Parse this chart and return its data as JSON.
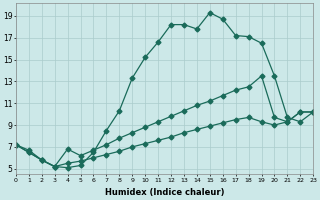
{
  "xlabel": "Humidex (Indice chaleur)",
  "background_color": "#cce8e8",
  "grid_color": "#aacccc",
  "line_color": "#1a6b5a",
  "line1_x": [
    0,
    1,
    2,
    3,
    4,
    5,
    6,
    7,
    8,
    9,
    10,
    11,
    12,
    13,
    14,
    15,
    16,
    17,
    18,
    19,
    20,
    21,
    22,
    23
  ],
  "line1_y": [
    7.2,
    6.7,
    5.8,
    5.2,
    5.1,
    5.3,
    6.5,
    8.5,
    10.3,
    13.3,
    15.2,
    16.6,
    18.2,
    18.2,
    17.8,
    19.3,
    18.7,
    17.2,
    17.1,
    16.5,
    13.5,
    9.7,
    9.3,
    10.2
  ],
  "line2_x": [
    0,
    1,
    2,
    3,
    4,
    5,
    6,
    7,
    8,
    9,
    10,
    11,
    12,
    13,
    14,
    15,
    16,
    17,
    18,
    19,
    20,
    21,
    22,
    23
  ],
  "line2_y": [
    7.2,
    6.5,
    5.8,
    5.2,
    6.8,
    6.2,
    6.7,
    7.2,
    7.8,
    8.3,
    8.8,
    9.3,
    9.8,
    10.3,
    10.8,
    11.2,
    11.7,
    12.2,
    12.5,
    13.5,
    9.7,
    9.3,
    10.2,
    10.2
  ],
  "line3_x": [
    0,
    1,
    2,
    3,
    4,
    5,
    6,
    7,
    8,
    9,
    10,
    11,
    12,
    13,
    14,
    15,
    16,
    17,
    18,
    19,
    20,
    21,
    22,
    23
  ],
  "line3_y": [
    7.2,
    6.5,
    5.8,
    5.2,
    5.5,
    5.7,
    6.0,
    6.3,
    6.6,
    7.0,
    7.3,
    7.6,
    7.9,
    8.3,
    8.6,
    8.9,
    9.2,
    9.5,
    9.7,
    9.3,
    9.0,
    9.3,
    10.2,
    10.2
  ],
  "xlim": [
    0,
    23
  ],
  "ylim": [
    4.5,
    20.2
  ],
  "yticks": [
    5,
    7,
    9,
    11,
    13,
    15,
    17,
    19
  ],
  "xticks": [
    0,
    1,
    2,
    3,
    4,
    5,
    6,
    7,
    8,
    9,
    10,
    11,
    12,
    13,
    14,
    15,
    16,
    17,
    18,
    19,
    20,
    21,
    22,
    23
  ]
}
